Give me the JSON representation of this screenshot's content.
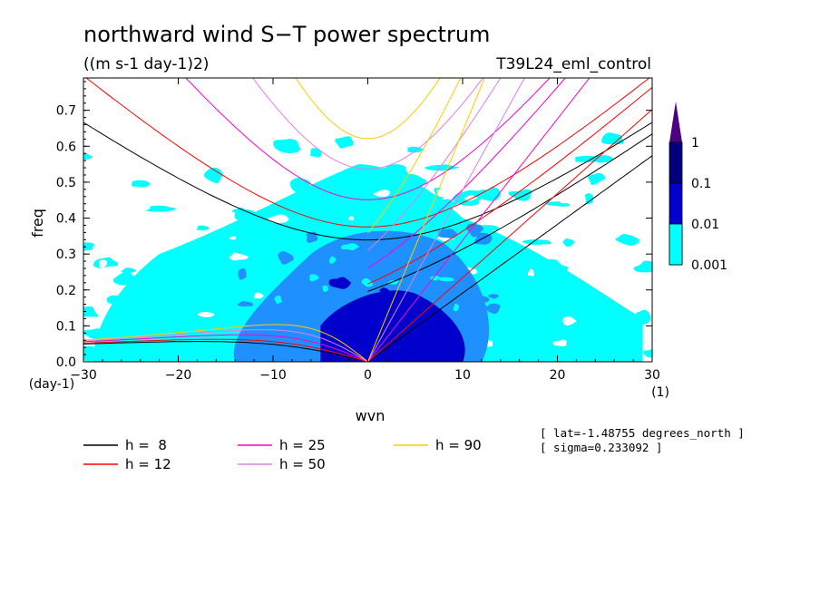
{
  "chart_data": {
    "type": "heatmap",
    "title": "northward wind S−T power spectrum",
    "subtitle": "((m s-1 day-1)2)",
    "run_label": "T39L24_eml_control",
    "xlabel": "wvn",
    "ylabel": "freq",
    "x_unit": "(1)",
    "y_unit": "(day-1)",
    "xlim": [
      -30,
      30
    ],
    "ylim": [
      0,
      0.79
    ],
    "xticks": [
      -30,
      -20,
      -10,
      0,
      10,
      20,
      30
    ],
    "yticks": [
      0.0,
      0.1,
      0.2,
      0.3,
      0.4,
      0.5,
      0.6,
      0.7
    ],
    "x_tick_labels": [
      "−30",
      "−20",
      "−10",
      "0",
      "10",
      "20",
      "30"
    ],
    "y_tick_labels": [
      "0.0",
      "0.1",
      "0.2",
      "0.3",
      "0.4",
      "0.5",
      "0.6",
      "0.7"
    ],
    "colorbar": {
      "levels": [
        "1",
        "0.1",
        "0.01",
        "0.001"
      ],
      "colors": [
        "#000080",
        "#0000cd",
        "#1e90ff",
        "#00ffff"
      ],
      "top_color": "#4b0082"
    },
    "contour_regions": [
      {
        "level": "0.001",
        "color": "#00ffff",
        "x": [
          -25,
          28
        ],
        "y": [
          0.0,
          0.58
        ],
        "note_points": [
          [
            -20,
            0.3
          ],
          [
            -10,
            0.35
          ],
          [
            5,
            0.3
          ],
          [
            15,
            0.25
          ],
          [
            25,
            0.2
          ]
        ]
      },
      {
        "level": "0.01",
        "color": "#1e90ff",
        "x": [
          -15,
          12
        ],
        "y": [
          0.0,
          0.4
        ]
      },
      {
        "level": "0.1",
        "color": "#0000cd",
        "x": [
          -5,
          10
        ],
        "y": [
          0.0,
          0.2
        ]
      }
    ],
    "dispersion_curves": [
      {
        "name": "h =  8",
        "color": "#000000"
      },
      {
        "name": "h = 12",
        "color": "#ff0000"
      },
      {
        "name": "h = 25",
        "color": "#ff00cc"
      },
      {
        "name": "h = 50",
        "color": "#e080e0"
      },
      {
        "name": "h = 90",
        "color": "#ffcc00"
      }
    ],
    "info_lines": [
      "[ lat=-1.48755 degrees_north ]",
      "[ sigma=0.233092 ]"
    ],
    "grid": false,
    "legend_position": "bottom"
  }
}
